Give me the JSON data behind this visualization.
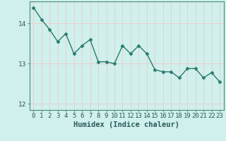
{
  "x": [
    0,
    1,
    2,
    3,
    4,
    5,
    6,
    7,
    8,
    9,
    10,
    11,
    12,
    13,
    14,
    15,
    16,
    17,
    18,
    19,
    20,
    21,
    22,
    23
  ],
  "y": [
    14.4,
    14.1,
    13.85,
    13.55,
    13.75,
    13.25,
    13.45,
    13.6,
    13.05,
    13.05,
    13.0,
    13.45,
    13.25,
    13.45,
    13.25,
    12.85,
    12.8,
    12.8,
    12.65,
    12.88,
    12.88,
    12.65,
    12.78,
    12.55
  ],
  "line_color": "#2a7b6e",
  "marker": "D",
  "marker_size": 2.5,
  "bg_color": "#cff0ec",
  "grid_color_major": "#f0c8c8",
  "grid_color_minor": "#f0c8c8",
  "title": "",
  "xlabel": "Humidex (Indice chaleur)",
  "ylabel": "",
  "ylim": [
    11.85,
    14.55
  ],
  "xlim": [
    -0.5,
    23.5
  ],
  "yticks": [
    12,
    13,
    14
  ],
  "xticks": [
    0,
    1,
    2,
    3,
    4,
    5,
    6,
    7,
    8,
    9,
    10,
    11,
    12,
    13,
    14,
    15,
    16,
    17,
    18,
    19,
    20,
    21,
    22,
    23
  ],
  "xlabel_fontsize": 7.5,
  "tick_fontsize": 6.5,
  "line_width": 1.0
}
